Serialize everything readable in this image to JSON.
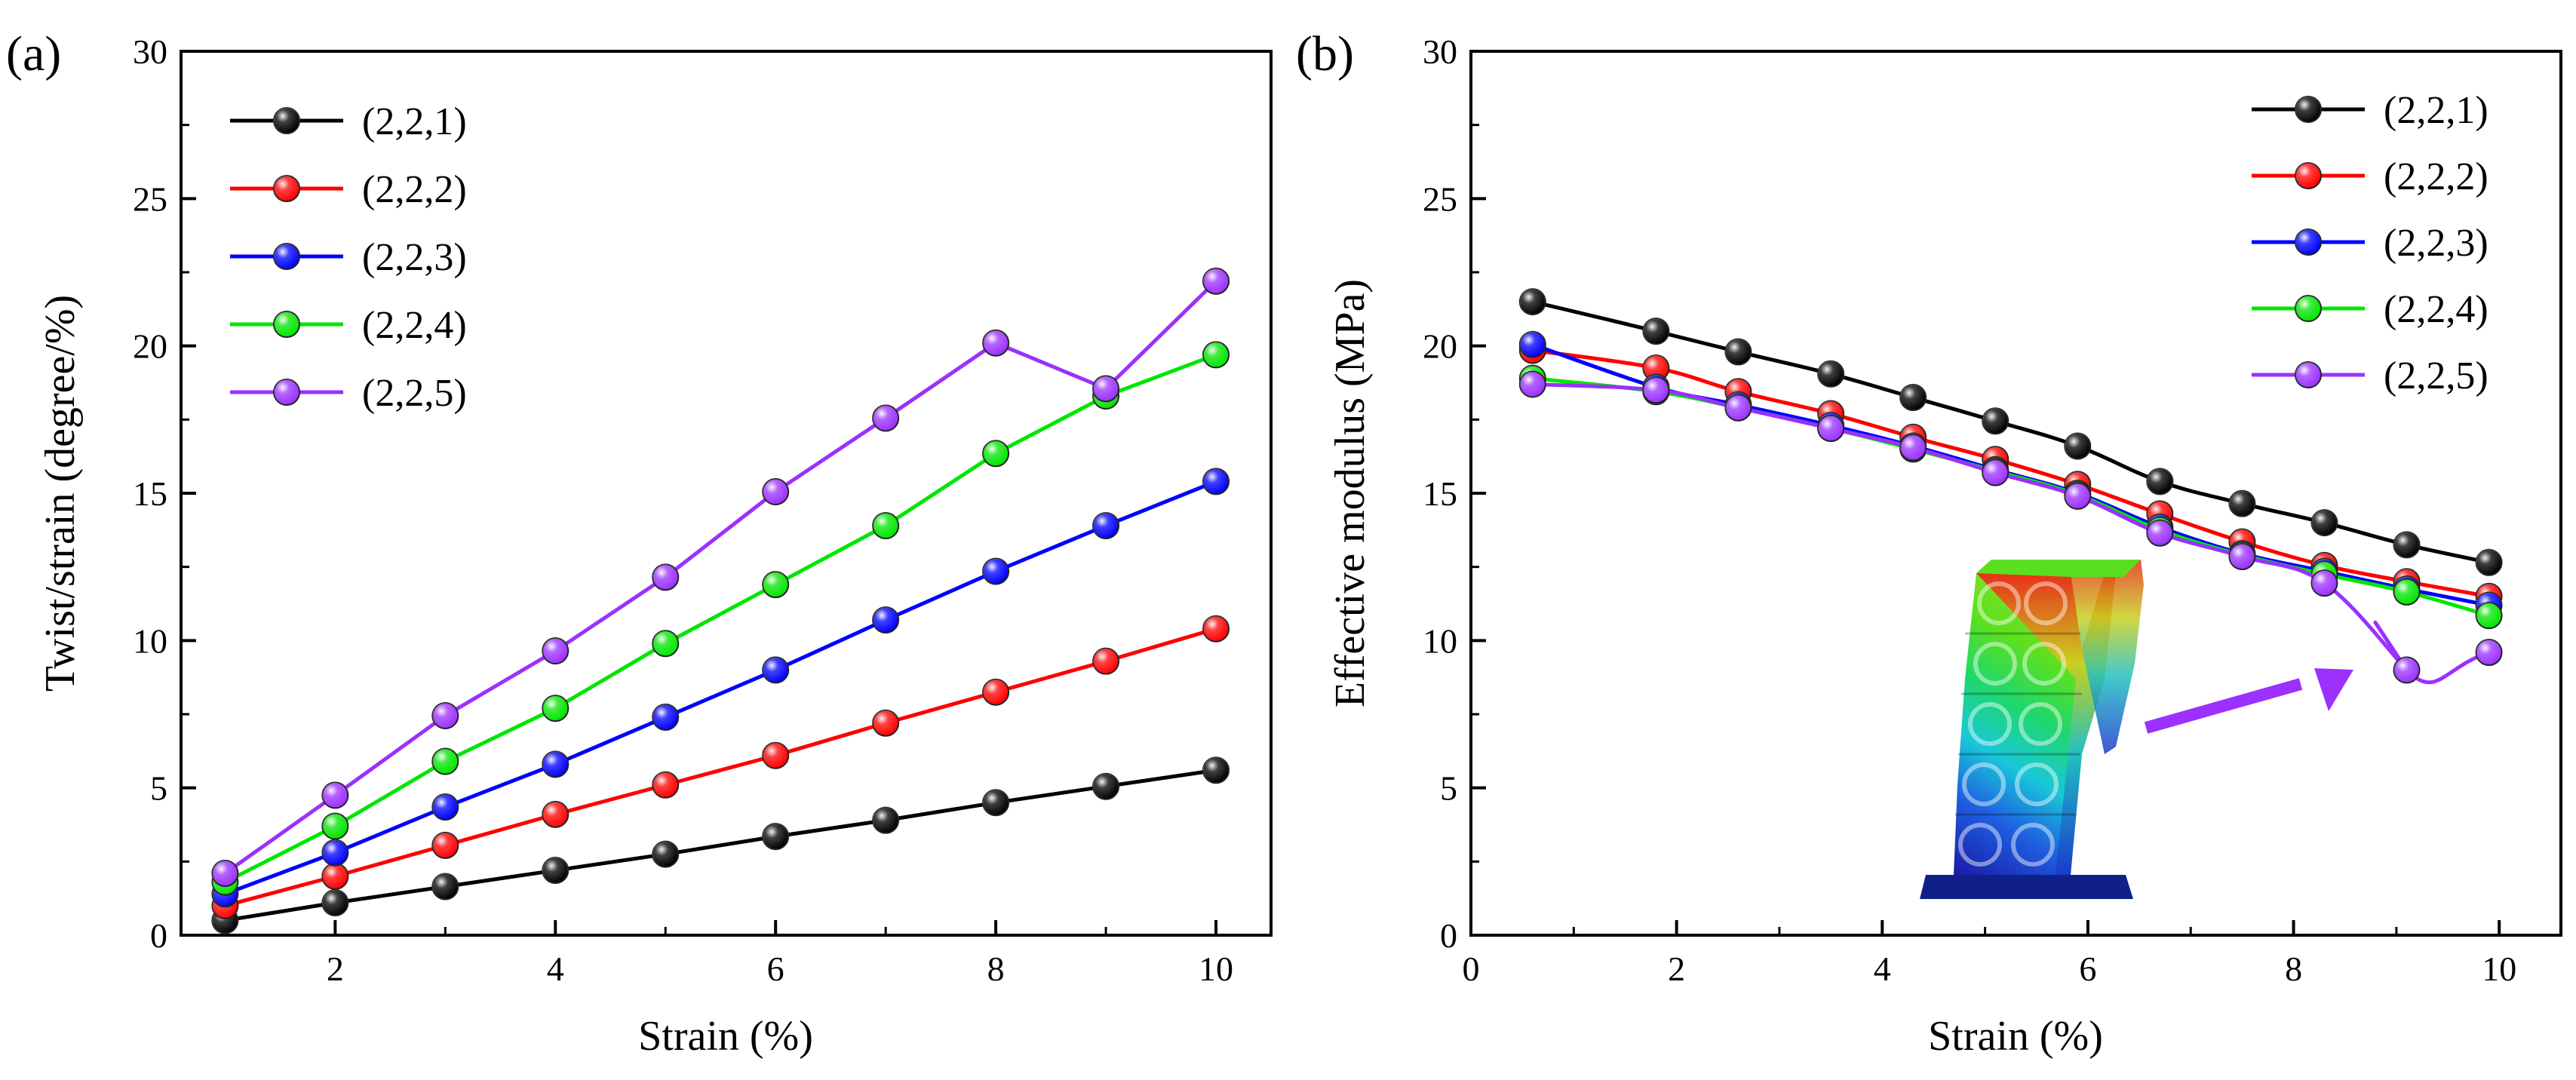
{
  "chart_data": [
    {
      "type": "line",
      "panel_label": "(a)",
      "xlabel": "Strain (%)",
      "ylabel": "Twist/strain (degree/%)",
      "xlim": [
        0.6,
        10.5
      ],
      "ylim": [
        0,
        30
      ],
      "xticks": [
        2,
        4,
        6,
        8,
        10
      ],
      "xtick_labels": [
        "2",
        "4",
        "6",
        "8",
        "10"
      ],
      "yticks": [
        0,
        5,
        10,
        15,
        20,
        25,
        30
      ],
      "ytick_labels": [
        "0",
        "5",
        "10",
        "15",
        "20",
        "25",
        "30"
      ],
      "legend_position": "top-left",
      "grid": false,
      "x": [
        1,
        2,
        3,
        4,
        5,
        6,
        7,
        8,
        9,
        10
      ],
      "series": [
        {
          "name": "(2,2,1)",
          "color": "#000000",
          "values": [
            0.5,
            1.1,
            1.65,
            2.2,
            2.75,
            3.35,
            3.9,
            4.5,
            5.05,
            5.6
          ]
        },
        {
          "name": "(2,2,2)",
          "color": "#ff0000",
          "values": [
            1.0,
            2.0,
            3.05,
            4.1,
            5.1,
            6.1,
            7.2,
            8.25,
            9.3,
            10.4
          ]
        },
        {
          "name": "(2,2,3)",
          "color": "#0000ff",
          "values": [
            1.4,
            2.8,
            4.35,
            5.8,
            7.4,
            9.0,
            10.7,
            12.35,
            13.9,
            15.4
          ]
        },
        {
          "name": "(2,2,4)",
          "color": "#00e600",
          "values": [
            1.8,
            3.7,
            5.9,
            7.7,
            9.9,
            11.9,
            13.9,
            16.35,
            18.3,
            19.7
          ]
        },
        {
          "name": "(2,2,5)",
          "color": "#9b30ff",
          "values": [
            2.1,
            4.75,
            7.45,
            9.65,
            12.15,
            15.05,
            17.55,
            20.1,
            18.55,
            22.2
          ]
        }
      ]
    },
    {
      "type": "line",
      "panel_label": "(b)",
      "xlabel": "Strain (%)",
      "ylabel": "Effective modulus (MPa)",
      "xlim": [
        0,
        10.6
      ],
      "ylim": [
        0,
        30
      ],
      "xticks": [
        0,
        2,
        4,
        6,
        8,
        10
      ],
      "xtick_labels": [
        "0",
        "2",
        "4",
        "6",
        "8",
        "10"
      ],
      "yticks": [
        0,
        5,
        10,
        15,
        20,
        25,
        30
      ],
      "ytick_labels": [
        "0",
        "5",
        "10",
        "15",
        "20",
        "25",
        "30"
      ],
      "legend_position": "top-right",
      "grid": false,
      "x": [
        0.6,
        1.8,
        2.6,
        3.5,
        4.3,
        5.1,
        5.9,
        6.7,
        7.5,
        8.3,
        9.1,
        9.9
      ],
      "series": [
        {
          "name": "(2,2,1)",
          "color": "#000000",
          "values": [
            21.5,
            20.5,
            19.8,
            19.05,
            18.25,
            17.45,
            16.6,
            15.4,
            14.65,
            14.0,
            13.25,
            12.65
          ]
        },
        {
          "name": "(2,2,2)",
          "color": "#ff0000",
          "values": [
            19.85,
            19.25,
            18.45,
            17.7,
            16.9,
            16.15,
            15.3,
            14.3,
            13.35,
            12.55,
            12.0,
            11.5
          ]
        },
        {
          "name": "(2,2,3)",
          "color": "#0000ff",
          "values": [
            20.05,
            18.6,
            18.0,
            17.3,
            16.6,
            15.8,
            15.0,
            13.85,
            12.95,
            12.35,
            11.75,
            11.2
          ]
        },
        {
          "name": "(2,2,4)",
          "color": "#00e600",
          "values": [
            18.9,
            18.45,
            17.9,
            17.2,
            16.5,
            15.75,
            14.95,
            13.75,
            12.9,
            12.25,
            11.65,
            10.85
          ]
        },
        {
          "name": "(2,2,5)",
          "color": "#9b30ff",
          "values": [
            18.7,
            18.5,
            17.9,
            17.2,
            16.55,
            15.7,
            14.9,
            13.65,
            12.85,
            11.95,
            9.0,
            9.6
          ]
        }
      ],
      "inset": {
        "description_icon": "deformed-lattice-column-contour",
        "arrow_color": "#9b30ff"
      }
    }
  ]
}
